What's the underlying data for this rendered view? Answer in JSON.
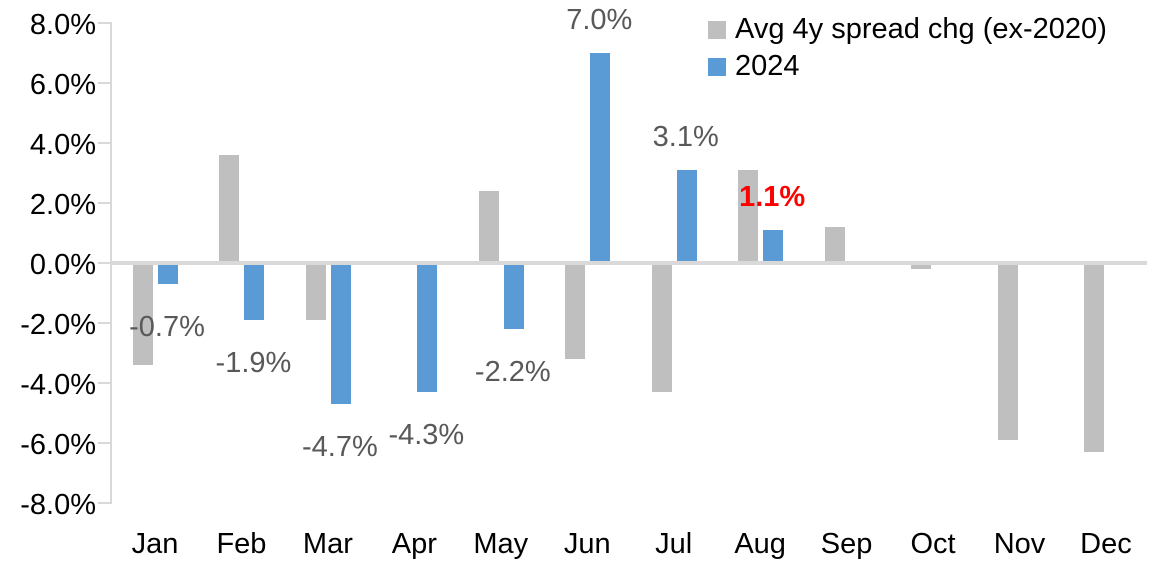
{
  "chart_data": {
    "type": "bar",
    "title": "",
    "xlabel": "",
    "ylabel": "",
    "categories": [
      "Jan",
      "Feb",
      "Mar",
      "Apr",
      "May",
      "Jun",
      "Jul",
      "Aug",
      "Sep",
      "Oct",
      "Nov",
      "Dec"
    ],
    "series": [
      {
        "name": "Avg 4y spread chg (ex-2020)",
        "color": "#BFBFBF",
        "values": [
          -3.4,
          3.6,
          -1.9,
          0,
          2.4,
          -3.2,
          -4.3,
          3.1,
          1.2,
          -0.2,
          -5.9,
          -6.3
        ]
      },
      {
        "name": "2024",
        "color": "#5B9BD5",
        "values": [
          -0.7,
          -1.9,
          -4.7,
          -4.3,
          -2.2,
          7.0,
          3.1,
          1.1,
          null,
          null,
          null,
          null
        ],
        "data_labels": [
          {
            "text": "-0.7%"
          },
          {
            "text": "-1.9%"
          },
          {
            "text": "-4.7%"
          },
          {
            "text": "-4.3%"
          },
          {
            "text": "-2.2%"
          },
          {
            "text": "7.0%"
          },
          {
            "text": "3.1%"
          },
          {
            "text": "1.1%",
            "color": "#FF0000",
            "bold": true
          },
          null,
          null,
          null,
          null
        ]
      }
    ],
    "ylim": [
      -8,
      8
    ],
    "ytick_step": 2,
    "ytick_labels": [
      "8.0%",
      "6.0%",
      "4.0%",
      "2.0%",
      "0.0%",
      "-2.0%",
      "-4.0%",
      "-6.0%",
      "-8.0%"
    ],
    "grid": false,
    "legend_position": "top-right",
    "colors": {
      "axis_line": "#D9D9D9",
      "data_label_default": "#595959",
      "data_label_highlight": "#FF0000",
      "tick_text": "#000000",
      "background": "#FFFFFF"
    }
  }
}
